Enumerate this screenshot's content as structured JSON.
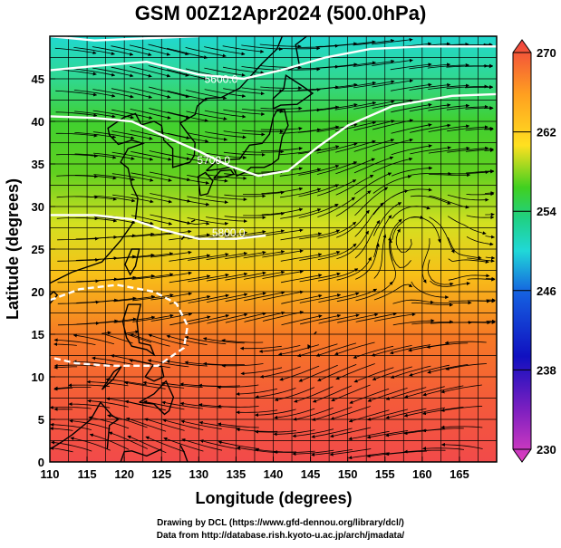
{
  "title": "GSM 00Z12Apr2024 (500.0hPa)",
  "credits": {
    "line1": "Drawing by DCL (https://www.gfd-dennou.org/library/dcl/)",
    "line2": "Data from http://database.rish.kyoto-u.ac.jp/arch/jmadata/"
  },
  "map": {
    "xlabel": "Longitude (degrees)",
    "ylabel": "Latitude  (degrees)",
    "lon_ticks": [
      110,
      115,
      120,
      125,
      130,
      135,
      140,
      145,
      150,
      155,
      160,
      165
    ],
    "lat_ticks": [
      0,
      5,
      10,
      15,
      20,
      25,
      30,
      35,
      40,
      45
    ],
    "lon_range": [
      110,
      170
    ],
    "lat_range": [
      0,
      50
    ],
    "contour_labels": [
      {
        "text": "5600.0",
        "lon": 133,
        "lat": 44.5
      },
      {
        "text": "5700.0",
        "lon": 132,
        "lat": 35
      },
      {
        "text": "5800.0",
        "lon": 134,
        "lat": 26.5
      }
    ]
  },
  "colorbar": {
    "ticks": [
      230,
      238,
      246,
      254,
      262,
      270
    ],
    "range": [
      230,
      270
    ],
    "colors": [
      "#e040c0",
      "#8020c0",
      "#1010c0",
      "#1560e0",
      "#1aa0e8",
      "#20d8d8",
      "#20d080",
      "#40d020",
      "#a0e020",
      "#ffe020",
      "#ffa020",
      "#ff6020",
      "#f04040"
    ]
  }
}
